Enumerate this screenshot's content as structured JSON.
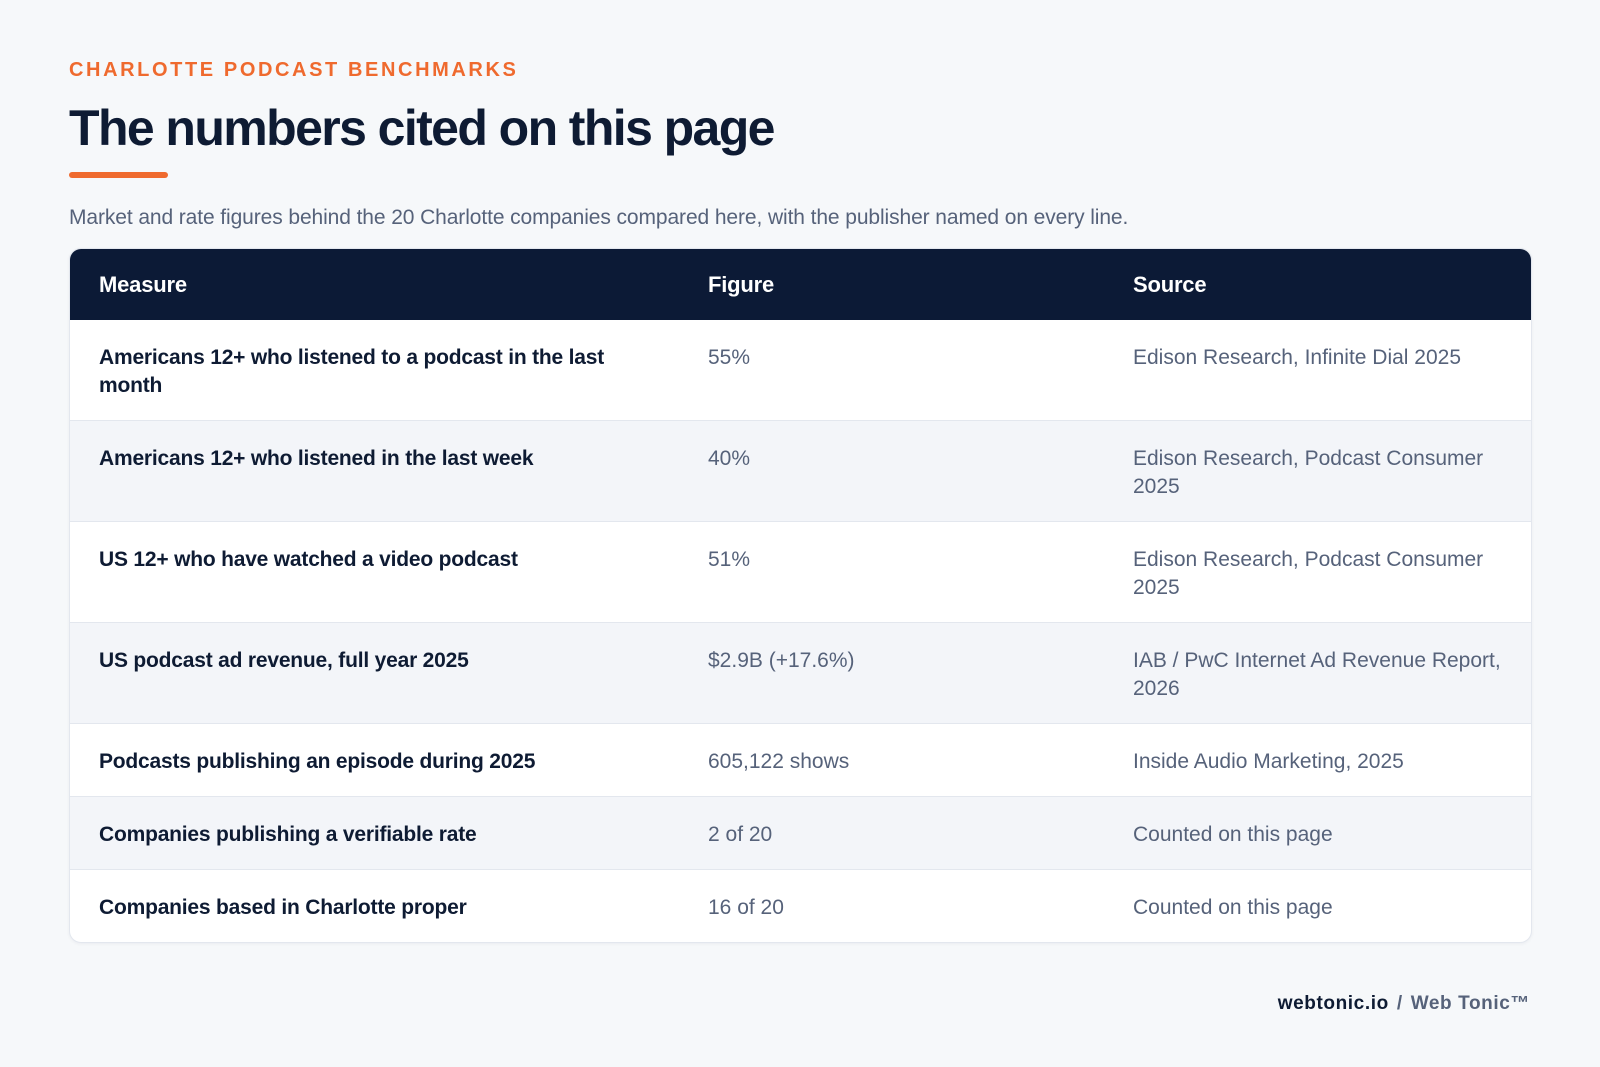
{
  "header": {
    "eyebrow": "CHARLOTTE PODCAST BENCHMARKS",
    "title": "The numbers cited on this page",
    "subtitle": "Market and rate figures behind the 20 Charlotte companies compared here, with the publisher named on every line."
  },
  "table": {
    "columns": [
      "Measure",
      "Figure",
      "Source"
    ],
    "rows": [
      {
        "measure": "Americans 12+ who listened to a podcast in the last month",
        "figure": "55%",
        "source": "Edison Research, Infinite Dial 2025"
      },
      {
        "measure": "Americans 12+ who listened in the last week",
        "figure": "40%",
        "source": "Edison Research, Podcast Consumer 2025"
      },
      {
        "measure": "US 12+ who have watched a video podcast",
        "figure": "51%",
        "source": "Edison Research, Podcast Consumer 2025"
      },
      {
        "measure": "US podcast ad revenue, full year 2025",
        "figure": "$2.9B (+17.6%)",
        "source": "IAB / PwC Internet Ad Revenue Report, 2026"
      },
      {
        "measure": "Podcasts publishing an episode during 2025",
        "figure": "605,122 shows",
        "source": "Inside Audio Marketing, 2025"
      },
      {
        "measure": "Companies publishing a verifiable rate",
        "figure": "2 of 20",
        "source": "Counted on this page"
      },
      {
        "measure": "Companies based in Charlotte proper",
        "figure": "16 of 20",
        "source": "Counted on this page"
      }
    ]
  },
  "footer": {
    "domain": "webtonic.io",
    "separator": "/",
    "brand": "Web Tonic™"
  },
  "colors": {
    "accent": "#ef6a2e",
    "header_bg": "#0c1a36",
    "text_dark": "#0e1b33",
    "text_muted": "#56627a",
    "page_bg": "#f6f8fa"
  }
}
